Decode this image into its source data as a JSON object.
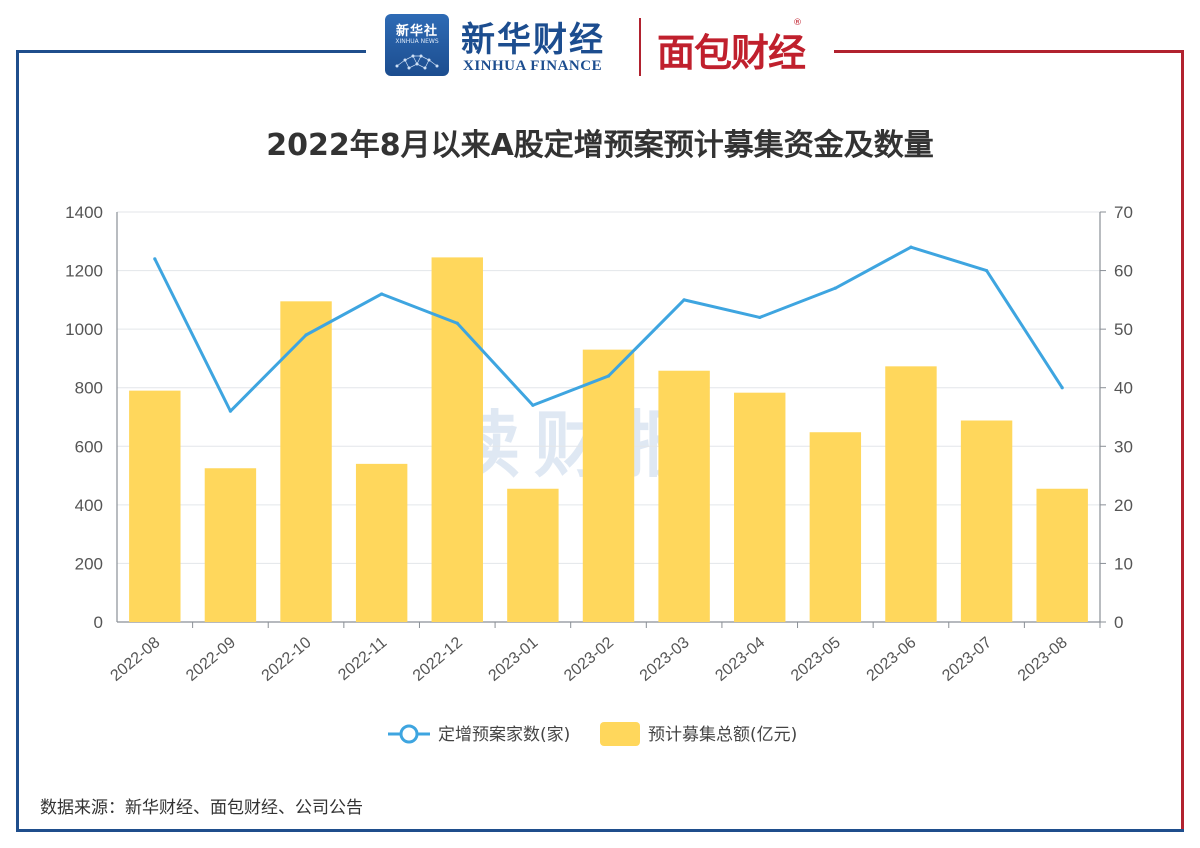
{
  "header": {
    "badge_text": "新华社",
    "badge_sub": "XINHUA NEWS",
    "brand_cn": "新华财经",
    "brand_en": "XINHUA FINANCE",
    "brand2": "面包财经",
    "brand2_mark": "®"
  },
  "watermark": "读财报",
  "source": "数据来源：新华财经、面包财经、公司公告",
  "colors": {
    "bar": "#ffd75c",
    "line": "#3ea5e0",
    "frame_left": "#1f4e8c",
    "frame_right": "#b1222f",
    "grid": "#e3e6ea",
    "axis": "#8a8f96"
  },
  "chart_data": {
    "type": "bar",
    "title": "2022年8月以来A股定增预案预计募集资金及数量",
    "categories": [
      "2022-08",
      "2022-09",
      "2022-10",
      "2022-11",
      "2022-12",
      "2023-01",
      "2023-02",
      "2023-03",
      "2023-04",
      "2023-05",
      "2023-06",
      "2023-07",
      "2023-08"
    ],
    "series": [
      {
        "name": "定增预案家数(家)",
        "type": "line",
        "axis": "right",
        "values": [
          62,
          36,
          49,
          56,
          51,
          37,
          42,
          55,
          52,
          57,
          64,
          60,
          40
        ]
      },
      {
        "name": "预计募集总额(亿元)",
        "type": "bar",
        "axis": "left",
        "values": [
          790,
          525,
          1095,
          540,
          1245,
          455,
          930,
          858,
          783,
          648,
          873,
          688,
          455
        ]
      }
    ],
    "ylim_left": [
      0,
      1400
    ],
    "yticks_left": [
      0,
      200,
      400,
      600,
      800,
      1000,
      1200,
      1400
    ],
    "ylim_right": [
      0,
      70
    ],
    "yticks_right": [
      0,
      10,
      20,
      30,
      40,
      50,
      60,
      70
    ],
    "grid": true,
    "legend_position": "bottom-center"
  }
}
